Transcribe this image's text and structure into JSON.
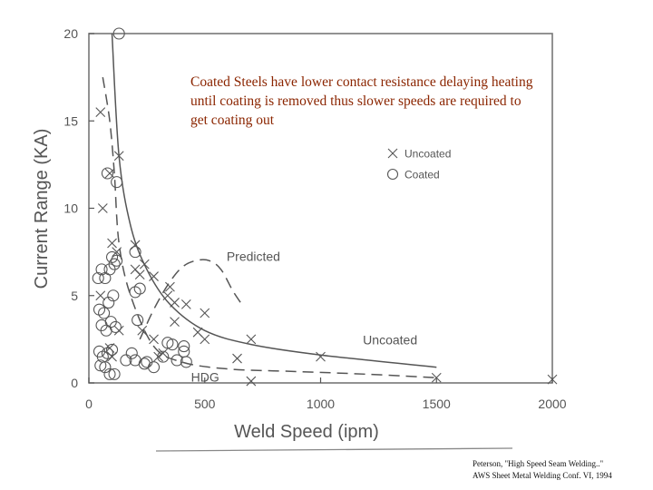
{
  "annotation": "Coated Steels have lower contact resistance delaying heating until coating is removed thus slower speeds are required to get coating out",
  "citation": {
    "line1": "Peterson, \"High Speed Seam Welding..\"",
    "line2": "AWS Sheet Metal Welding Conf. VI, 1994"
  },
  "colors": {
    "annotation": "#8b2500",
    "chart_ink": "#555555",
    "frame": "#777777"
  },
  "chart_data": {
    "type": "scatter",
    "xlabel": "Weld Speed (ipm)",
    "ylabel": "Current Range (KA)",
    "xlim": [
      0,
      2000
    ],
    "ylim": [
      0,
      20
    ],
    "xticks": [
      "0",
      "500",
      "1000",
      "1500",
      "2000"
    ],
    "yticks": [
      "0",
      "5",
      "10",
      "15",
      "20"
    ],
    "grid": false,
    "legend_position": "upper-right",
    "legend": [
      {
        "name": "Uncoated",
        "marker": "x"
      },
      {
        "name": "Coated",
        "marker": "o"
      }
    ],
    "series": [
      {
        "name": "Uncoated",
        "marker": "x",
        "points": [
          [
            50,
            15.5
          ],
          [
            90,
            12
          ],
          [
            130,
            13
          ],
          [
            60,
            10
          ],
          [
            100,
            8
          ],
          [
            120,
            7.5
          ],
          [
            50,
            5
          ],
          [
            90,
            2
          ],
          [
            100,
            1.5
          ],
          [
            130,
            3
          ],
          [
            200,
            7.9
          ],
          [
            200,
            6.5
          ],
          [
            220,
            6.2
          ],
          [
            240,
            6.8
          ],
          [
            280,
            6.1
          ],
          [
            230,
            3
          ],
          [
            280,
            2.5
          ],
          [
            300,
            1.5
          ],
          [
            320,
            1.7
          ],
          [
            340,
            5
          ],
          [
            350,
            5.5
          ],
          [
            370,
            3.5
          ],
          [
            370,
            4.6
          ],
          [
            420,
            4.5
          ],
          [
            470,
            2.9
          ],
          [
            500,
            4
          ],
          [
            500,
            2.5
          ],
          [
            640,
            1.4
          ],
          [
            700,
            2.5
          ],
          [
            700,
            0.1
          ],
          [
            1000,
            1.5
          ],
          [
            1500,
            0.3
          ],
          [
            2000,
            0.2
          ]
        ]
      },
      {
        "name": "Coated",
        "marker": "o",
        "points": [
          [
            130,
            20
          ],
          [
            80,
            12
          ],
          [
            120,
            11.5
          ],
          [
            40,
            6
          ],
          [
            55,
            6.5
          ],
          [
            70,
            6
          ],
          [
            90,
            6.5
          ],
          [
            110,
            6.8
          ],
          [
            100,
            7.2
          ],
          [
            120,
            7
          ],
          [
            45,
            4.2
          ],
          [
            65,
            4
          ],
          [
            85,
            4.6
          ],
          [
            105,
            5
          ],
          [
            55,
            3.3
          ],
          [
            75,
            3
          ],
          [
            95,
            3.5
          ],
          [
            115,
            3.2
          ],
          [
            45,
            1.8
          ],
          [
            60,
            1.5
          ],
          [
            80,
            1.7
          ],
          [
            100,
            1.9
          ],
          [
            50,
            1
          ],
          [
            70,
            0.9
          ],
          [
            90,
            0.5
          ],
          [
            110,
            0.5
          ],
          [
            200,
            7.5
          ],
          [
            200,
            5.2
          ],
          [
            220,
            5.4
          ],
          [
            210,
            3.6
          ],
          [
            200,
            1.3
          ],
          [
            250,
            1.2
          ],
          [
            160,
            1.3
          ],
          [
            185,
            1.7
          ],
          [
            240,
            1.1
          ],
          [
            280,
            0.9
          ],
          [
            320,
            1.5
          ],
          [
            340,
            2.3
          ],
          [
            360,
            2.2
          ],
          [
            380,
            1.3
          ],
          [
            410,
            1.8
          ],
          [
            410,
            2.1
          ],
          [
            420,
            1.2
          ]
        ]
      }
    ],
    "curves": [
      {
        "name": "Uncoated",
        "label": "Uncoated",
        "style": "solid",
        "points": [
          [
            100,
            20
          ],
          [
            130,
            13
          ],
          [
            180,
            9
          ],
          [
            250,
            6.5
          ],
          [
            350,
            4.5
          ],
          [
            500,
            3
          ],
          [
            700,
            2.2
          ],
          [
            1000,
            1.6
          ],
          [
            1500,
            0.9
          ]
        ]
      },
      {
        "name": "HDG",
        "label": "HDG",
        "style": "dashed",
        "points": [
          [
            60,
            17.5
          ],
          [
            90,
            15
          ],
          [
            110,
            12
          ],
          [
            130,
            8
          ],
          [
            180,
            5
          ],
          [
            280,
            2.1
          ],
          [
            400,
            1.2
          ],
          [
            600,
            0.8
          ],
          [
            900,
            0.65
          ],
          [
            1200,
            0.5
          ],
          [
            1500,
            0.3
          ]
        ]
      },
      {
        "name": "Predicted",
        "label": "Predicted",
        "style": "dashed",
        "points": [
          [
            220,
            2.5
          ],
          [
            280,
            4.2
          ],
          [
            340,
            5.6
          ],
          [
            400,
            6.6
          ],
          [
            460,
            7
          ],
          [
            520,
            7
          ],
          [
            570,
            6.5
          ],
          [
            620,
            5.3
          ],
          [
            660,
            4.5
          ]
        ]
      }
    ]
  }
}
